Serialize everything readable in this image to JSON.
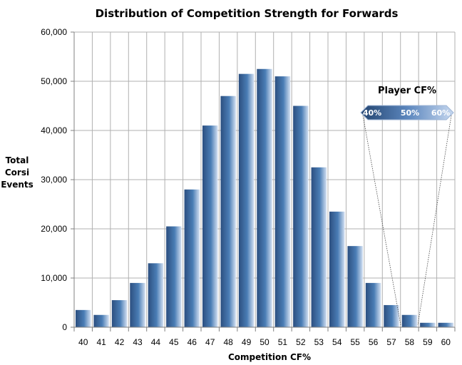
{
  "chart_data": {
    "type": "bar",
    "title": "Distribution of Competition Strength for Forwards",
    "xlabel": "Competition CF%",
    "ylabel": [
      "Total",
      "Corsi",
      "Events"
    ],
    "ylim": [
      0,
      60000
    ],
    "yticks": [
      0,
      10000,
      20000,
      30000,
      40000,
      50000,
      60000
    ],
    "ytick_labels": [
      "0",
      "10,000",
      "20,000",
      "30,000",
      "40,000",
      "50,000",
      "60,000"
    ],
    "grid": true,
    "categories": [
      "40",
      "41",
      "42",
      "43",
      "44",
      "45",
      "46",
      "47",
      "48",
      "49",
      "50",
      "51",
      "52",
      "53",
      "54",
      "55",
      "56",
      "57",
      "58",
      "59",
      "60"
    ],
    "values": [
      3500,
      2500,
      5500,
      9000,
      13000,
      20500,
      28000,
      41000,
      47000,
      51500,
      52500,
      51000,
      45000,
      32500,
      23500,
      16500,
      9000,
      4500,
      2500,
      900,
      900
    ],
    "legend": {
      "title": "Player CF%",
      "labels": [
        "40%",
        "50%",
        "60%"
      ],
      "colors": [
        "#2a4f7f",
        "#b8ccea"
      ]
    },
    "colors": {
      "bar_dark": "#2c4f80",
      "bar_mid": "#4a7db5",
      "bar_light": "#c8d8ee",
      "grid": "#b0b0b0"
    }
  }
}
